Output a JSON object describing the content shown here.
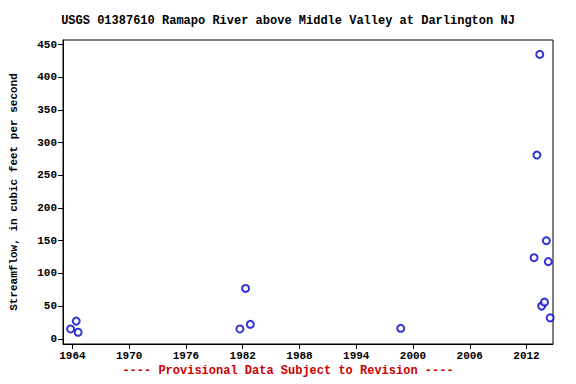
{
  "chart_data": {
    "type": "scatter",
    "title": "USGS 01387610 Ramapo River above Middle Valley at Darlington NJ",
    "y_label": "Streamflow, in cubic feet per second",
    "annotation": "---- Provisional Data Subject to Revision ----",
    "x": [
      1963.8,
      1964.4,
      1964.6,
      1981.7,
      1982.3,
      1982.8,
      1998.7,
      2012.8,
      2013.1,
      2013.4,
      2013.6,
      2013.9,
      2014.1,
      2014.3,
      2014.5
    ],
    "values": [
      15,
      27,
      10,
      15,
      77,
      22,
      16,
      124,
      281,
      435,
      50,
      56,
      150,
      118,
      32
    ],
    "color": "#0000cc",
    "marker": "hollow_circle",
    "xlim": [
      1963,
      2014.8
    ],
    "xticks": [
      1964,
      1970,
      1976,
      1982,
      1988,
      1994,
      2000,
      2006,
      2012
    ],
    "ylim": [
      -8,
      457
    ],
    "yticks": [
      0,
      50,
      100,
      150,
      200,
      250,
      300,
      350,
      400,
      450
    ],
    "grid": false
  }
}
